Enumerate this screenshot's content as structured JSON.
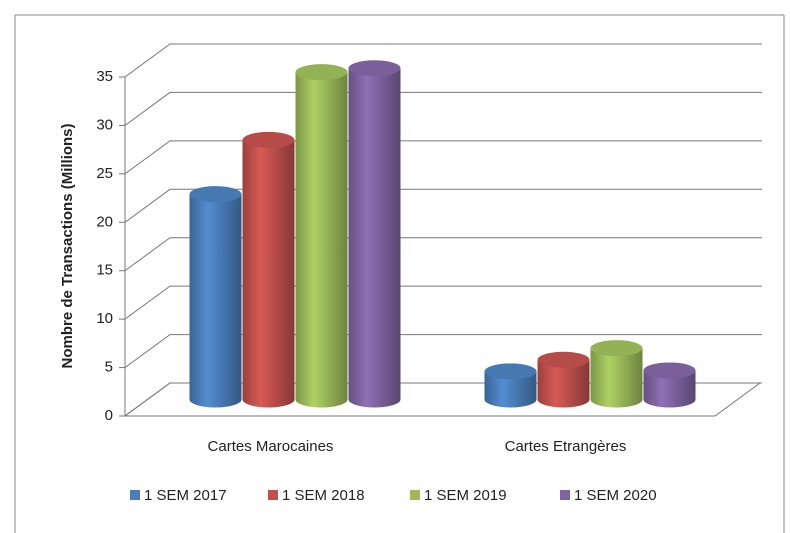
{
  "chart_data": {
    "type": "bar3d",
    "ylabel": "Nombre de Transactions (Millions)",
    "categories": [
      "Cartes Marocaines",
      "Cartes Etrangères"
    ],
    "series": [
      {
        "name": "1 SEM 2017",
        "color": "#4a7ebb",
        "values": [
          21.2,
          2.9
        ]
      },
      {
        "name": "1 SEM 2018",
        "color": "#c0504d",
        "values": [
          26.8,
          4.1
        ]
      },
      {
        "name": "1 SEM 2019",
        "color": "#9bbb59",
        "values": [
          33.8,
          5.3
        ]
      },
      {
        "name": "1 SEM 2020",
        "color": "#8064a2",
        "values": [
          34.2,
          3.0
        ]
      }
    ],
    "ylim": [
      0,
      35
    ],
    "yticks": [
      0,
      5,
      10,
      15,
      20,
      25,
      30,
      35
    ],
    "grid": true,
    "legend": "bottom"
  }
}
